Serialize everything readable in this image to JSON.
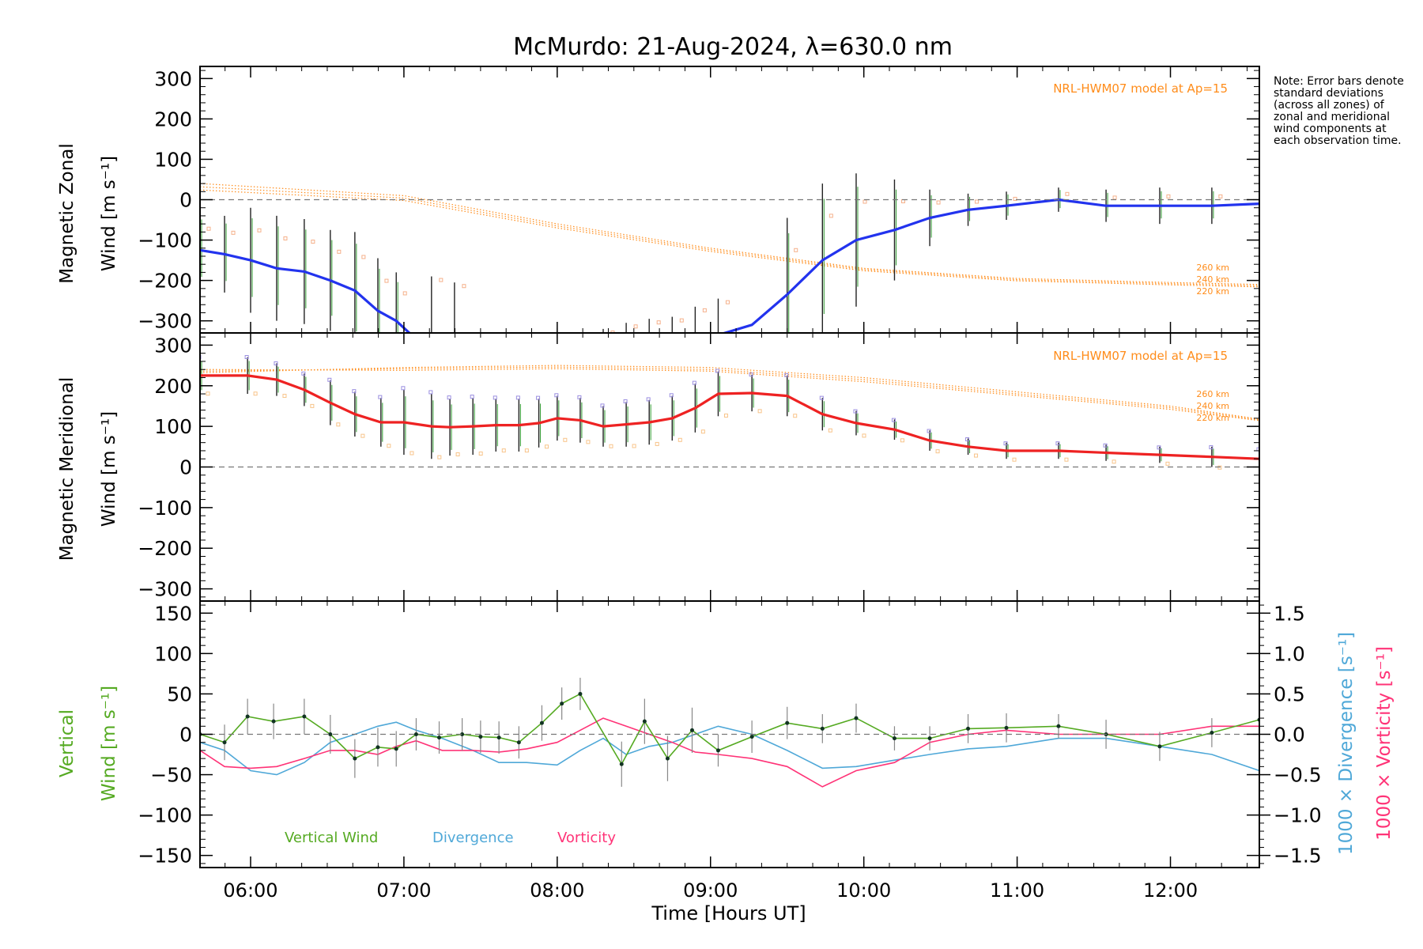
{
  "title": "McMurdo: 21-Aug-2024, λ=630.0 nm",
  "note": "Note: Error bars denote standard deviations (across all zones) of zonal and meridional wind components at each observation time.",
  "x_axis": {
    "label": "Time [Hours UT]",
    "ticks": [
      "06:00",
      "07:00",
      "08:00",
      "09:00",
      "10:00",
      "11:00",
      "12:00"
    ]
  },
  "model_label": "NRL-HWM07 model at Ap=15",
  "altitude_labels": [
    "260 km",
    "240 km",
    "220 km"
  ],
  "panels": {
    "zonal": {
      "ylabel_line1": "Magnetic Zonal",
      "ylabel_line2": "Wind [m s⁻¹]",
      "yticks": [
        "300",
        "200",
        "100",
        "0",
        "−100",
        "−200",
        "−300"
      ]
    },
    "meridional": {
      "ylabel_line1": "Magnetic Meridional",
      "ylabel_line2": "Wind [m s⁻¹]",
      "yticks": [
        "300",
        "200",
        "100",
        "0",
        "−100",
        "−200",
        "−300"
      ]
    },
    "vertical": {
      "ylabel_line1": "Vertical",
      "ylabel_line2": "Wind [m s⁻¹]",
      "yticks": [
        "150",
        "100",
        "50",
        "0",
        "−50",
        "−100",
        "−150"
      ],
      "right_ticks": [
        "1.5",
        "1.0",
        "0.5",
        "0.0",
        "−0.5",
        "−1.0",
        "−1.5"
      ],
      "right_label_div": "1000 × Divergence [s⁻¹]",
      "right_label_vort": "1000 × Vorticity [s⁻¹]",
      "legend": [
        "Vertical Wind",
        "Divergence",
        "Vorticity"
      ]
    }
  },
  "colors": {
    "zonal": "#2233ee",
    "meridional": "#ee2222",
    "model": "#ff8c1a",
    "vertical": "#55aa22",
    "divergence": "#4fa8d8",
    "vorticity": "#ff3377"
  },
  "chart_data": [
    {
      "type": "line",
      "title": "McMurdo: 21-Aug-2024, λ=630.0 nm",
      "xlabel": "",
      "ylabel": "Magnetic Zonal Wind [m s⁻¹]",
      "xlim": [
        5.67,
        12.58
      ],
      "ylim": [
        -330,
        330
      ],
      "series": [
        {
          "name": "",
          "x": [
            5.67,
            5.83,
            6.0,
            6.17,
            6.35,
            6.52,
            6.68,
            6.83,
            6.95,
            7.05
          ],
          "y": [
            -125,
            -135,
            -150,
            -170,
            -178,
            -200,
            -225,
            -275,
            -300,
            -335
          ],
          "err": [
            95,
            95,
            130,
            130,
            130,
            125,
            145,
            130,
            120,
            0
          ]
        },
        {
          "name": "",
          "x": [
            9.05,
            9.27,
            9.5,
            9.73,
            9.95,
            10.2,
            10.43,
            10.68,
            10.93,
            11.27,
            11.58,
            11.93,
            12.27,
            12.58
          ],
          "y": [
            -335,
            -310,
            -235,
            -150,
            -100,
            -75,
            -45,
            -25,
            -15,
            0,
            -15,
            -15,
            -15,
            -10
          ],
          "err": [
            0,
            0,
            190,
            190,
            165,
            125,
            70,
            40,
            35,
            30,
            40,
            45,
            45,
            50
          ]
        }
      ],
      "hanging_error_tops": [
        {
          "x": 7.18,
          "top": -190
        },
        {
          "x": 7.33,
          "top": -205
        },
        {
          "x": 8.3,
          "top": -320
        },
        {
          "x": 8.45,
          "top": -305
        },
        {
          "x": 8.6,
          "top": -295
        },
        {
          "x": 8.75,
          "top": -290
        },
        {
          "x": 8.9,
          "top": -265
        },
        {
          "x": 9.05,
          "top": -245
        }
      ],
      "model": {
        "name": "NRL-HWM07 model at Ap=15",
        "curves": [
          {
            "altitude": "260 km",
            "x": [
              5.67,
              7.0,
              8.0,
              9.0,
              10.0,
              11.0,
              12.0,
              12.58
            ],
            "y": [
              40,
              10,
              -60,
              -120,
              -170,
              -195,
              -205,
              -210
            ]
          },
          {
            "altitude": "240 km",
            "x": [
              5.67,
              7.0,
              8.0,
              9.0,
              10.0,
              11.0,
              12.0,
              12.58
            ],
            "y": [
              32,
              4,
              -65,
              -124,
              -173,
              -198,
              -208,
              -213
            ]
          },
          {
            "altitude": "220 km",
            "x": [
              5.67,
              7.0,
              8.0,
              9.0,
              10.0,
              11.0,
              12.0,
              12.58
            ],
            "y": [
              24,
              -2,
              -70,
              -128,
              -176,
              -201,
              -211,
              -216
            ]
          }
        ]
      }
    },
    {
      "type": "line",
      "xlabel": "",
      "ylabel": "Magnetic Meridional Wind [m s⁻¹]",
      "xlim": [
        5.67,
        12.58
      ],
      "ylim": [
        -330,
        330
      ],
      "series": [
        {
          "name": "",
          "x": [
            5.67,
            5.98,
            6.17,
            6.35,
            6.52,
            6.68,
            6.85,
            7.0,
            7.18,
            7.3,
            7.45,
            7.6,
            7.75,
            7.88,
            8.0,
            8.15,
            8.3,
            8.45,
            8.6,
            8.75,
            8.9,
            9.05,
            9.27,
            9.5,
            9.73,
            9.95,
            10.2,
            10.43,
            10.68,
            10.93,
            11.27,
            11.58,
            11.93,
            12.27,
            12.58
          ],
          "y": [
            225,
            225,
            215,
            190,
            158,
            130,
            110,
            110,
            100,
            98,
            100,
            103,
            103,
            108,
            120,
            115,
            100,
            105,
            110,
            120,
            145,
            180,
            182,
            175,
            130,
            108,
            92,
            65,
            50,
            40,
            40,
            35,
            30,
            25,
            20
          ],
          "err": [
            45,
            45,
            40,
            40,
            55,
            55,
            60,
            80,
            80,
            70,
            70,
            65,
            65,
            60,
            55,
            55,
            50,
            55,
            55,
            55,
            60,
            55,
            45,
            50,
            40,
            30,
            25,
            25,
            20,
            20,
            20,
            20,
            20,
            25,
            25
          ]
        }
      ],
      "model": {
        "name": "NRL-HWM07 model at Ap=15",
        "curves": [
          {
            "altitude": "260 km",
            "x": [
              5.67,
              7.0,
              8.0,
              9.0,
              10.0,
              11.0,
              12.0,
              12.58
            ],
            "y": [
              232,
              245,
              250,
              245,
              220,
              185,
              150,
              118
            ]
          },
          {
            "altitude": "240 km",
            "x": [
              5.67,
              7.0,
              8.0,
              9.0,
              10.0,
              11.0,
              12.0,
              12.58
            ],
            "y": [
              236,
              242,
              246,
              240,
              215,
              180,
              146,
              116
            ]
          },
          {
            "altitude": "220 km",
            "x": [
              5.67,
              7.0,
              8.0,
              9.0,
              10.0,
              11.0,
              12.0,
              12.58
            ],
            "y": [
              240,
              238,
              242,
              236,
              210,
              176,
              142,
              114
            ]
          }
        ]
      }
    },
    {
      "type": "line",
      "xlabel": "Time [Hours UT]",
      "ylabel": "Vertical Wind [m s⁻¹]",
      "xlim": [
        5.67,
        12.58
      ],
      "ylim": [
        -165,
        165
      ],
      "y2lim": [
        -1.65,
        1.65
      ],
      "series": [
        {
          "name": "Vertical Wind",
          "x": [
            5.67,
            5.83,
            5.98,
            6.15,
            6.35,
            6.52,
            6.68,
            6.83,
            6.95,
            7.08,
            7.23,
            7.38,
            7.5,
            7.62,
            7.75,
            7.9,
            8.03,
            8.15,
            8.42,
            8.57,
            8.72,
            8.88,
            9.05,
            9.27,
            9.5,
            9.73,
            9.95,
            10.2,
            10.43,
            10.68,
            10.93,
            11.27,
            11.58,
            11.93,
            12.27,
            12.58
          ],
          "y": [
            0,
            -10,
            22,
            16,
            22,
            0,
            -30,
            -16,
            -18,
            0,
            -4,
            0,
            -3,
            -4,
            -10,
            14,
            38,
            50,
            -37,
            16,
            -30,
            5,
            -20,
            -3,
            14,
            7,
            20,
            -5,
            -5,
            7,
            8,
            10,
            0,
            -15,
            2,
            18
          ],
          "err": [
            15,
            22,
            22,
            22,
            22,
            24,
            24,
            24,
            22,
            20,
            20,
            20,
            20,
            20,
            20,
            22,
            20,
            20,
            28,
            28,
            28,
            28,
            20,
            20,
            20,
            18,
            18,
            15,
            15,
            18,
            18,
            15,
            18,
            18,
            18,
            15
          ]
        },
        {
          "name": "Divergence",
          "axis": "right",
          "x": [
            5.67,
            5.83,
            6.0,
            6.17,
            6.35,
            6.52,
            6.68,
            6.83,
            6.95,
            7.08,
            7.25,
            7.45,
            7.62,
            7.8,
            8.0,
            8.15,
            8.3,
            8.45,
            8.6,
            8.75,
            8.9,
            9.05,
            9.27,
            9.5,
            9.73,
            9.95,
            10.2,
            10.43,
            10.68,
            10.93,
            11.27,
            11.58,
            11.93,
            12.27,
            12.58
          ],
          "y": [
            -0.1,
            -0.2,
            -0.45,
            -0.5,
            -0.35,
            -0.1,
            0.0,
            0.1,
            0.15,
            0.05,
            -0.05,
            -0.2,
            -0.35,
            -0.35,
            -0.38,
            -0.2,
            -0.05,
            -0.25,
            -0.15,
            -0.1,
            0.0,
            0.1,
            0.0,
            -0.2,
            -0.42,
            -0.4,
            -0.32,
            -0.25,
            -0.18,
            -0.15,
            -0.05,
            -0.05,
            -0.15,
            -0.25,
            -0.45
          ]
        },
        {
          "name": "Vorticity",
          "axis": "right",
          "x": [
            5.67,
            5.83,
            6.0,
            6.17,
            6.35,
            6.52,
            6.68,
            6.83,
            6.95,
            7.08,
            7.25,
            7.45,
            7.62,
            7.8,
            8.0,
            8.15,
            8.3,
            8.45,
            8.6,
            8.75,
            8.9,
            9.05,
            9.27,
            9.5,
            9.73,
            9.95,
            10.2,
            10.43,
            10.68,
            10.93,
            11.27,
            11.58,
            11.93,
            12.27,
            12.58
          ],
          "y": [
            -0.2,
            -0.4,
            -0.42,
            -0.4,
            -0.3,
            -0.2,
            -0.2,
            -0.25,
            -0.15,
            -0.08,
            -0.2,
            -0.2,
            -0.22,
            -0.18,
            -0.1,
            0.05,
            0.2,
            0.1,
            0.0,
            -0.1,
            -0.22,
            -0.25,
            -0.3,
            -0.4,
            -0.65,
            -0.45,
            -0.35,
            -0.1,
            0.0,
            0.05,
            0.0,
            0.0,
            0.0,
            0.1,
            0.1
          ]
        }
      ]
    }
  ]
}
